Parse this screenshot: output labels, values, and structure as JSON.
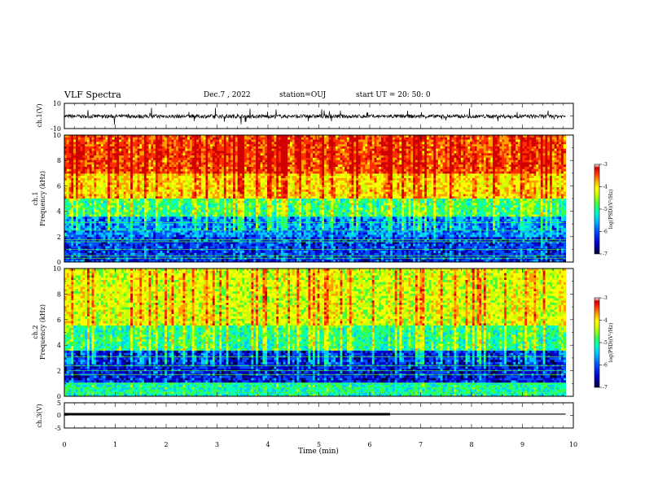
{
  "header": {
    "title": "VLF Spectra",
    "date": "Dec.7 , 2022",
    "station": "station=OUJ",
    "start_ut": "start UT =  20: 50: 0"
  },
  "colors": {
    "colormap": [
      "#00003a",
      "#0000c8",
      "#0050ff",
      "#00c8ff",
      "#00ffc0",
      "#40ff40",
      "#c8ff00",
      "#ffff00",
      "#ffa000",
      "#ff3000",
      "#d00000",
      "#ffffff"
    ],
    "trace": "#000000"
  },
  "chart_data": [
    {
      "type": "line",
      "name": "ch1-waveform",
      "ylabel": "ch.1(V)",
      "ylim": [
        -10,
        10
      ],
      "yticks": [
        "10",
        "-10"
      ],
      "xlim": [
        0,
        10
      ],
      "baseline": 0,
      "note_level": "noise band approx. -2 to 1 V"
    },
    {
      "type": "heatmap",
      "name": "ch1-spectrogram",
      "ylabel": "ch.1\nFrequency (kHz)",
      "ylabel_top": "ch.1",
      "ylabel_bottom": "Frequency (kHz)",
      "xlim": [
        0,
        9.85
      ],
      "ylim": [
        0,
        10
      ],
      "yticks": [
        "0",
        "2",
        "4",
        "6",
        "8",
        "10"
      ],
      "colorbar": {
        "label": "log(PSD)(V²/Hz)",
        "range": [
          -7,
          -3
        ],
        "ticks": [
          "-3",
          "-4",
          "-5",
          "-6",
          "-7"
        ]
      },
      "bands": [
        {
          "from_khz": 0,
          "to_khz": 2,
          "level": -6.3
        },
        {
          "from_khz": 2,
          "to_khz": 3.5,
          "level": -6.0
        },
        {
          "from_khz": 3.5,
          "to_khz": 5,
          "level": -5.2
        },
        {
          "from_khz": 5,
          "to_khz": 7,
          "level": -4.3
        },
        {
          "from_khz": 7,
          "to_khz": 10,
          "level": -3.7
        }
      ],
      "lines_khz": [
        0.3,
        0.5,
        1.0,
        1.6,
        1.75,
        2.5,
        3.1
      ]
    },
    {
      "type": "heatmap",
      "name": "ch2-spectrogram",
      "ylabel": "ch.2\nFrequency (kHz)",
      "ylabel_top": "ch.2",
      "ylabel_bottom": "Frequency (kHz)",
      "xlim": [
        0,
        9.85
      ],
      "ylim": [
        0,
        10
      ],
      "yticks": [
        "0",
        "2",
        "4",
        "6",
        "8",
        "10"
      ],
      "colorbar": {
        "label": "log(PSD)(V²/Hz)",
        "range": [
          -7,
          -3
        ],
        "ticks": [
          "-3",
          "-4",
          "-5",
          "-6",
          "-7"
        ]
      },
      "bands": [
        {
          "from_khz": 0,
          "to_khz": 1,
          "level": -5.4
        },
        {
          "from_khz": 1,
          "to_khz": 3.5,
          "level": -6.4
        },
        {
          "from_khz": 3.5,
          "to_khz": 5.5,
          "level": -5.3
        },
        {
          "from_khz": 5.5,
          "to_khz": 10,
          "level": -4.6
        }
      ],
      "lines_khz": [
        0.3,
        0.7,
        1.0,
        1.7,
        2.0,
        2.4,
        3.1
      ]
    },
    {
      "type": "line",
      "name": "ch3-level",
      "ylabel": "ch.3(V)",
      "ylim": [
        -5,
        5
      ],
      "yticks": [
        "5",
        "0",
        "-5"
      ],
      "xlabel": "Time (min)",
      "xlim": [
        0,
        10
      ],
      "xticks": [
        "0",
        "1",
        "2",
        "3",
        "4",
        "5",
        "6",
        "7",
        "8",
        "9",
        "10"
      ],
      "segments": [
        {
          "x": [
            0,
            6.4
          ],
          "y": 0.5,
          "weight": "heavy"
        },
        {
          "x": [
            6.4,
            9.85
          ],
          "y": 0.5,
          "weight": "light"
        }
      ]
    }
  ]
}
